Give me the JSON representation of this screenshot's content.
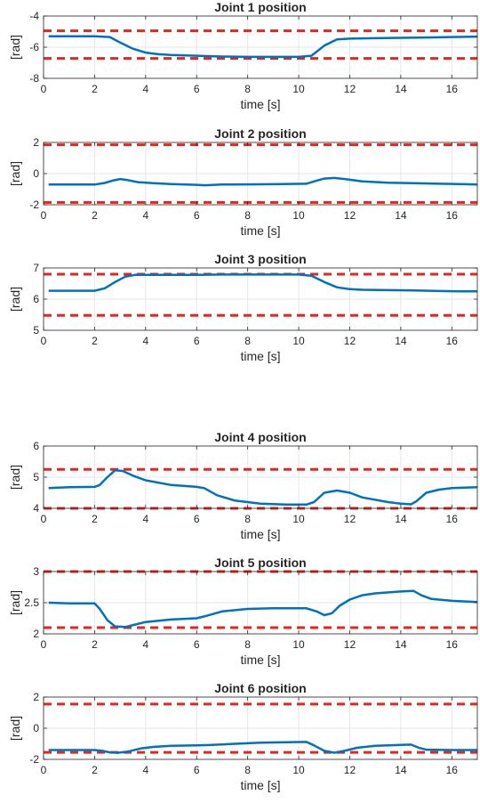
{
  "chart_data": [
    {
      "type": "line",
      "title": "Joint 1 position",
      "xlabel": "time [s]",
      "ylabel": "[rad]",
      "xlim": [
        0,
        17
      ],
      "ylim": [
        -8,
        -4
      ],
      "xticks": [
        "0",
        "2",
        "4",
        "6",
        "8",
        "10",
        "12",
        "14",
        "16"
      ],
      "yticks": [
        "-8",
        "-6",
        "-4"
      ],
      "grid": true,
      "limits": [
        -4.95,
        -6.72
      ],
      "series": [
        {
          "x": [
            0.2,
            2.0,
            2.6,
            3.0,
            3.5,
            4.0,
            4.5,
            5.0,
            6.0,
            7.0,
            8.0,
            9.0,
            10.0,
            10.5,
            11.0,
            11.5,
            12.0,
            13.0,
            14.0,
            15.0,
            16.0,
            17.0
          ],
          "y": [
            -5.3,
            -5.3,
            -5.35,
            -5.7,
            -6.1,
            -6.35,
            -6.45,
            -6.5,
            -6.55,
            -6.6,
            -6.62,
            -6.62,
            -6.62,
            -6.55,
            -5.9,
            -5.5,
            -5.45,
            -5.42,
            -5.4,
            -5.38,
            -5.35,
            -5.32
          ]
        }
      ]
    },
    {
      "type": "line",
      "title": "Joint 2 position",
      "xlabel": "time [s]",
      "ylabel": "[rad]",
      "xlim": [
        0,
        17
      ],
      "ylim": [
        -2,
        2
      ],
      "xticks": [
        "0",
        "2",
        "4",
        "6",
        "8",
        "10",
        "12",
        "14",
        "16"
      ],
      "yticks": [
        "-2",
        "0",
        "2"
      ],
      "grid": true,
      "limits": [
        1.85,
        -1.85
      ],
      "series": [
        {
          "x": [
            0.2,
            1.0,
            2.0,
            2.4,
            2.7,
            3.0,
            3.3,
            3.7,
            4.3,
            5.0,
            6.0,
            6.3,
            7.0,
            8.0,
            9.0,
            10.3,
            10.7,
            11.0,
            11.4,
            11.8,
            12.5,
            13.5,
            14.5,
            15.5,
            16.5,
            17.0
          ],
          "y": [
            -0.7,
            -0.7,
            -0.7,
            -0.6,
            -0.45,
            -0.35,
            -0.42,
            -0.55,
            -0.62,
            -0.67,
            -0.72,
            -0.75,
            -0.7,
            -0.69,
            -0.68,
            -0.65,
            -0.45,
            -0.32,
            -0.28,
            -0.35,
            -0.5,
            -0.58,
            -0.62,
            -0.65,
            -0.68,
            -0.7
          ]
        }
      ]
    },
    {
      "type": "line",
      "title": "Joint 3 position",
      "xlabel": "time [s]",
      "ylabel": "[rad]",
      "xlim": [
        0,
        17
      ],
      "ylim": [
        5,
        7
      ],
      "xticks": [
        "0",
        "2",
        "4",
        "6",
        "8",
        "10",
        "12",
        "14",
        "16"
      ],
      "yticks": [
        "5",
        "6",
        "7"
      ],
      "grid": true,
      "limits": [
        6.8,
        5.48
      ],
      "series": [
        {
          "x": [
            0.2,
            2.0,
            2.4,
            2.8,
            3.2,
            3.6,
            4.0,
            5.0,
            6.0,
            7.0,
            8.0,
            9.0,
            10.0,
            10.5,
            11.0,
            11.5,
            12.0,
            12.5,
            13.5,
            14.5,
            15.5,
            16.5,
            17.0
          ],
          "y": [
            6.27,
            6.27,
            6.35,
            6.55,
            6.72,
            6.78,
            6.78,
            6.78,
            6.78,
            6.79,
            6.79,
            6.79,
            6.79,
            6.75,
            6.55,
            6.38,
            6.32,
            6.3,
            6.29,
            6.28,
            6.26,
            6.25,
            6.25
          ]
        }
      ]
    },
    {
      "type": "line",
      "title": "Joint 4 position",
      "xlabel": "time [s]",
      "ylabel": "[rad]",
      "xlim": [
        0,
        17
      ],
      "ylim": [
        4,
        6
      ],
      "xticks": [
        "0",
        "2",
        "4",
        "6",
        "8",
        "10",
        "12",
        "14",
        "16"
      ],
      "yticks": [
        "4",
        "5",
        "6"
      ],
      "grid": true,
      "limits": [
        5.25,
        4.0
      ],
      "series": [
        {
          "x": [
            0.2,
            1.0,
            2.0,
            2.2,
            2.5,
            2.8,
            3.1,
            3.5,
            4.0,
            5.0,
            6.0,
            6.3,
            6.8,
            7.5,
            8.5,
            9.5,
            10.3,
            10.6,
            11.0,
            11.5,
            12.0,
            12.5,
            13.5,
            14.0,
            14.4,
            14.6,
            15.0,
            15.5,
            16.0,
            17.0
          ],
          "y": [
            4.65,
            4.68,
            4.69,
            4.75,
            5.0,
            5.22,
            5.2,
            5.05,
            4.9,
            4.75,
            4.69,
            4.65,
            4.42,
            4.25,
            4.15,
            4.12,
            4.12,
            4.2,
            4.5,
            4.57,
            4.5,
            4.35,
            4.2,
            4.15,
            4.13,
            4.22,
            4.5,
            4.6,
            4.65,
            4.68
          ]
        }
      ]
    },
    {
      "type": "line",
      "title": "Joint 5 position",
      "xlabel": "time [s]",
      "ylabel": "[rad]",
      "xlim": [
        0,
        17
      ],
      "ylim": [
        2,
        3
      ],
      "xticks": [
        "0",
        "2",
        "4",
        "6",
        "8",
        "10",
        "12",
        "14",
        "16"
      ],
      "yticks": [
        "2",
        "2.5",
        "3"
      ],
      "grid": true,
      "limits": [
        3.0,
        2.1
      ],
      "series": [
        {
          "x": [
            0.2,
            1.0,
            2.0,
            2.2,
            2.5,
            2.8,
            3.2,
            3.6,
            4.0,
            5.0,
            6.0,
            6.3,
            7.0,
            8.0,
            9.0,
            10.3,
            10.7,
            11.0,
            11.3,
            11.6,
            12.0,
            12.5,
            13.0,
            14.0,
            14.5,
            14.8,
            15.2,
            16.0,
            17.0
          ],
          "y": [
            2.5,
            2.49,
            2.49,
            2.4,
            2.22,
            2.12,
            2.11,
            2.15,
            2.19,
            2.23,
            2.25,
            2.28,
            2.36,
            2.4,
            2.41,
            2.41,
            2.36,
            2.3,
            2.33,
            2.45,
            2.55,
            2.62,
            2.65,
            2.68,
            2.69,
            2.62,
            2.56,
            2.53,
            2.51
          ]
        }
      ]
    },
    {
      "type": "line",
      "title": "Joint 6 position",
      "xlabel": "time [s]",
      "ylabel": "[rad]",
      "xlim": [
        0,
        17
      ],
      "ylim": [
        -2,
        2
      ],
      "xticks": [
        "0",
        "2",
        "4",
        "6",
        "8",
        "10",
        "12",
        "14",
        "16"
      ],
      "yticks": [
        "-2",
        "0",
        "2"
      ],
      "grid": true,
      "limits": [
        1.55,
        -1.55
      ],
      "series": [
        {
          "x": [
            0.2,
            1.0,
            2.0,
            2.3,
            2.6,
            2.9,
            3.3,
            3.8,
            4.3,
            5.0,
            6.0,
            6.5,
            7.5,
            8.5,
            9.5,
            10.3,
            10.6,
            11.0,
            11.4,
            11.8,
            12.3,
            13.0,
            14.0,
            14.4,
            14.7,
            15.0,
            16.0,
            17.0
          ],
          "y": [
            -1.4,
            -1.4,
            -1.4,
            -1.45,
            -1.55,
            -1.58,
            -1.5,
            -1.3,
            -1.2,
            -1.13,
            -1.1,
            -1.08,
            -1.0,
            -0.93,
            -0.9,
            -0.88,
            -1.1,
            -1.45,
            -1.57,
            -1.45,
            -1.25,
            -1.13,
            -1.07,
            -1.05,
            -1.25,
            -1.38,
            -1.4,
            -1.4
          ]
        }
      ]
    }
  ]
}
